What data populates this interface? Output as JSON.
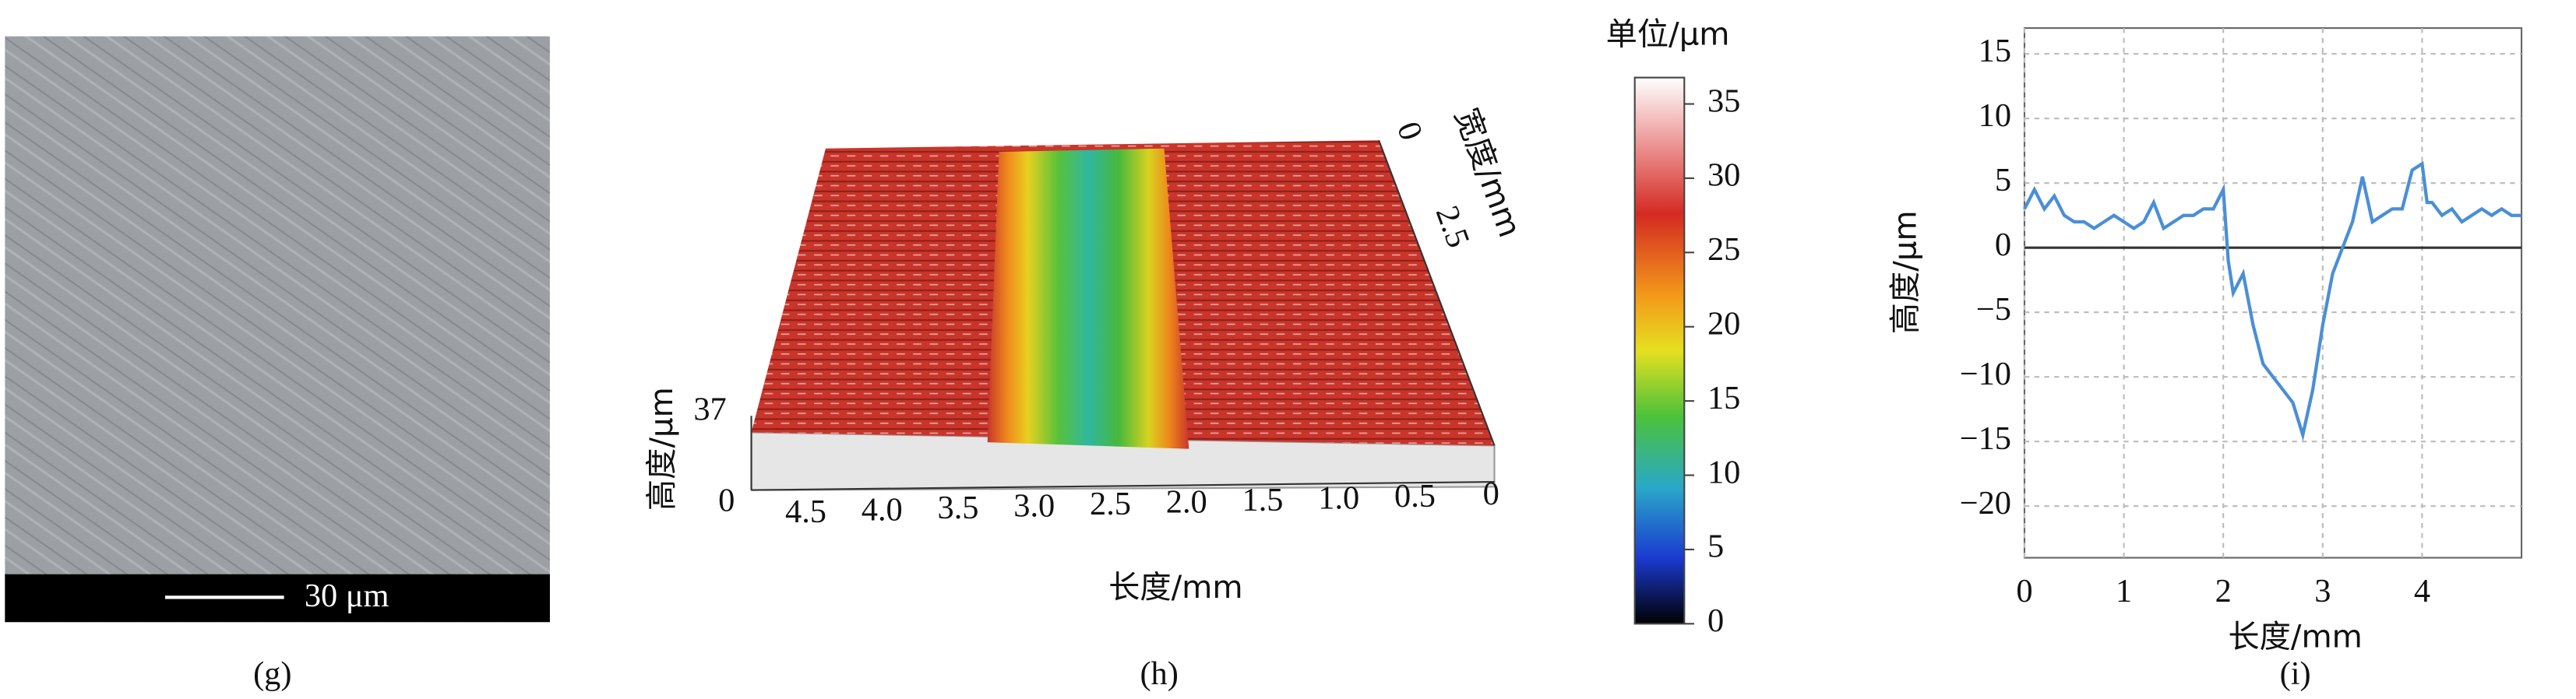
{
  "panel_g": {
    "scale_bar": "30 μm",
    "caption": "(g)"
  },
  "panel_h": {
    "width_axis": {
      "title": "宽度/mm",
      "ticks": [
        "0",
        "2.5"
      ]
    },
    "height_axis": {
      "title": "高度/μm",
      "ticks": [
        "37",
        "0"
      ]
    },
    "length_axis": {
      "title": "长度/mm",
      "ticks": [
        "4.5",
        "4.0",
        "3.5",
        "3.0",
        "2.5",
        "2.0",
        "1.5",
        "1.0",
        "0.5",
        "0"
      ]
    },
    "colorbar": {
      "title": "单位/μm",
      "ticks": [
        0,
        5,
        10,
        15,
        20,
        25,
        30,
        35
      ]
    },
    "caption": "(h)"
  },
  "chart_data": {
    "type": "line",
    "caption": "(i)",
    "x_label": "长度/mm",
    "y_label": "高度/μm",
    "x": [
      0,
      0.1,
      0.2,
      0.3,
      0.4,
      0.5,
      0.6,
      0.7,
      0.8,
      0.9,
      1.0,
      1.1,
      1.2,
      1.3,
      1.4,
      1.5,
      1.6,
      1.7,
      1.8,
      1.9,
      2.0,
      2.05,
      2.1,
      2.2,
      2.3,
      2.4,
      2.5,
      2.6,
      2.7,
      2.8,
      2.9,
      3.0,
      3.1,
      3.2,
      3.3,
      3.4,
      3.5,
      3.6,
      3.7,
      3.8,
      3.9,
      4.0,
      4.05,
      4.1,
      4.2,
      4.3,
      4.4,
      4.5,
      4.6,
      4.7,
      4.8,
      4.9,
      5.0
    ],
    "series": [
      {
        "color": "#4a8fd6",
        "values": [
          3,
          4.5,
          3,
          4,
          2.5,
          2,
          2,
          1.5,
          2,
          2.5,
          2,
          1.5,
          2,
          3.5,
          1.5,
          2,
          2.5,
          2.5,
          3,
          3,
          4.5,
          -1,
          -3.5,
          -2,
          -6,
          -9,
          -10,
          -11,
          -12,
          -14.5,
          -11,
          -6,
          -2,
          0,
          2,
          5.5,
          2,
          2.5,
          3,
          3,
          6,
          6.5,
          3.5,
          3.5,
          2.5,
          3,
          2,
          2.5,
          3,
          2.5,
          3,
          2.5,
          2.5
        ]
      }
    ],
    "xlim": [
      0,
      5
    ],
    "ylim": [
      -24,
      17
    ],
    "xticks": [
      0,
      1,
      2,
      3,
      4
    ],
    "yticks": [
      15,
      10,
      5,
      0,
      {
        "value": -5,
        "label": "−5"
      },
      {
        "value": -10,
        "label": "−10"
      },
      {
        "value": -15,
        "label": "−15"
      },
      {
        "value": -20,
        "label": "−20"
      }
    ],
    "grid": true,
    "zero_line": true
  }
}
